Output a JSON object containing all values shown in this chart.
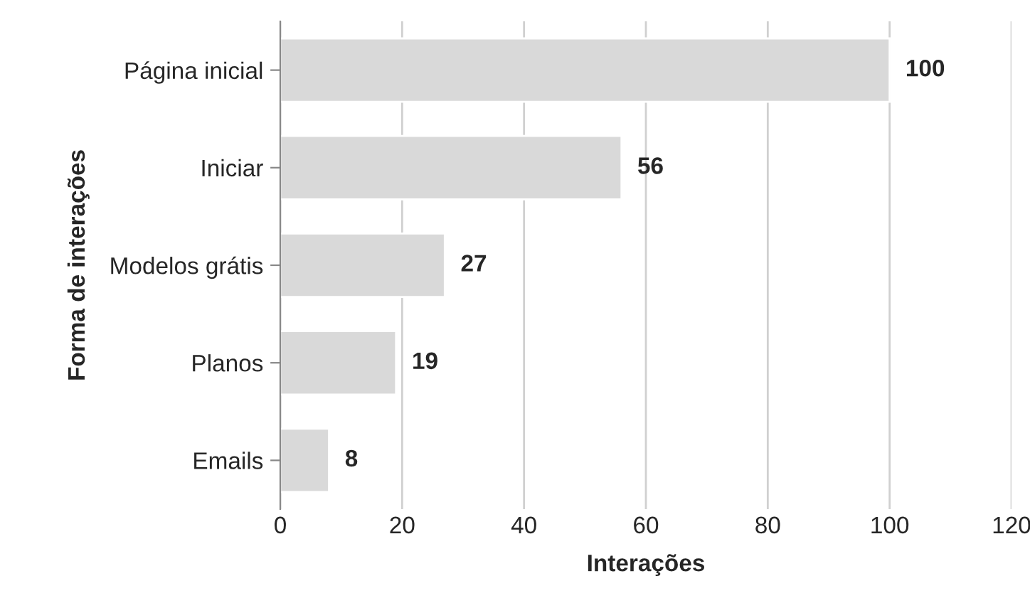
{
  "chart_data": {
    "type": "bar",
    "orientation": "horizontal",
    "xlabel": "Interações",
    "ylabel": "Forma de interações",
    "categories": [
      "Página inicial",
      "Iniciar",
      "Modelos grátis",
      "Planos",
      "Emails"
    ],
    "values": [
      100,
      56,
      27,
      19,
      8
    ],
    "color": "#d9d9d9",
    "xlim": [
      0,
      120
    ],
    "xticks": [
      0,
      20,
      40,
      60,
      80,
      100,
      120
    ],
    "grid": "x",
    "data_labels": true
  }
}
